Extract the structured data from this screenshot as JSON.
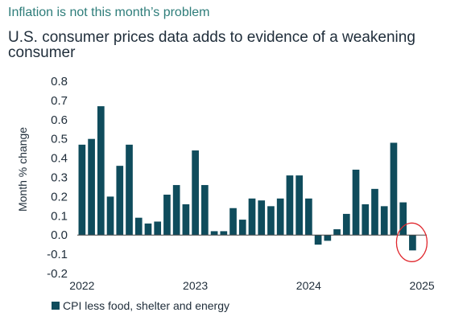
{
  "header": {
    "kicker": "Inflation is not this month’s problem",
    "title": "U.S. consumer prices data adds to evidence of a weakening consumer"
  },
  "chart_data": {
    "type": "bar",
    "title": "U.S. consumer prices data adds to evidence of a weakening consumer",
    "ylabel": "Month % change",
    "xlabel": "",
    "ylim": [
      -0.2,
      0.8
    ],
    "yticks": [
      "0.8",
      "0.7",
      "0.6",
      "0.5",
      "0.4",
      "0.3",
      "0.2",
      "0.1",
      "0.0",
      "-0.1",
      "-0.2"
    ],
    "xtick_labels": [
      "2022",
      "2023",
      "2024",
      "2025"
    ],
    "series": [
      {
        "name": "CPI less food, shelter and energy",
        "color": "#0f4c5c",
        "categories": [
          "Jan 2022",
          "Feb 2022",
          "Mar 2022",
          "Apr 2022",
          "May 2022",
          "Jun 2022",
          "Jul 2022",
          "Aug 2022",
          "Sep 2022",
          "Oct 2022",
          "Nov 2022",
          "Dec 2022",
          "Jan 2023",
          "Feb 2023",
          "Mar 2023",
          "Apr 2023",
          "May 2023",
          "Jun 2023",
          "Jul 2023",
          "Aug 2023",
          "Sep 2023",
          "Oct 2023",
          "Nov 2023",
          "Dec 2023",
          "Jan 2024",
          "Feb 2024",
          "Mar 2024",
          "Apr 2024",
          "May 2024",
          "Jun 2024",
          "Jul 2024",
          "Aug 2024",
          "Sep 2024",
          "Oct 2024",
          "Nov 2024",
          "Dec 2024",
          "Jan 2025"
        ],
        "values": [
          0.47,
          0.5,
          0.67,
          0.2,
          0.36,
          0.47,
          0.09,
          0.06,
          0.07,
          0.21,
          0.26,
          0.16,
          0.44,
          0.26,
          0.02,
          0.02,
          0.14,
          0.08,
          0.19,
          0.18,
          0.15,
          0.19,
          0.31,
          0.31,
          0.19,
          -0.05,
          -0.03,
          0.03,
          0.11,
          0.34,
          0.16,
          0.24,
          0.15,
          0.48,
          0.17,
          -0.08,
          null
        ]
      }
    ],
    "annotation": "red circle around latest negative reading",
    "grid": false,
    "legend_position": "bottom-left"
  },
  "legend": {
    "label": "CPI less food, shelter and energy"
  }
}
